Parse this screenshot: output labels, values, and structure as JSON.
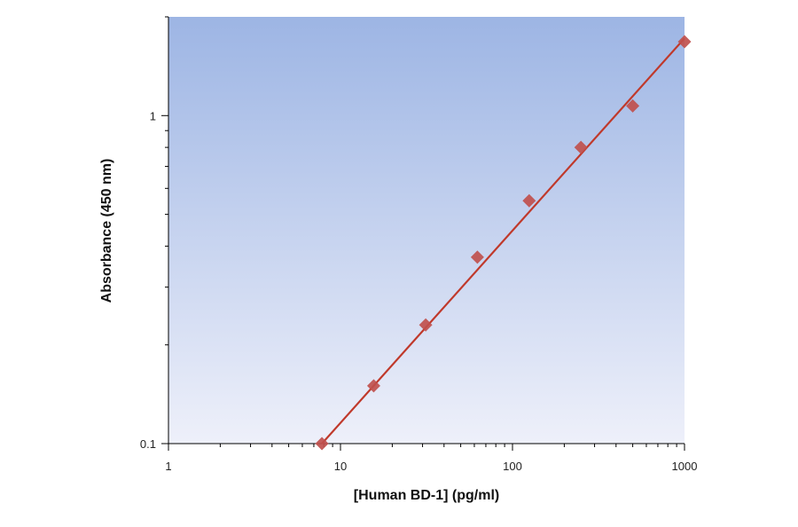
{
  "chart_data": {
    "type": "scatter",
    "title": "",
    "xlabel": "[Human BD-1] (pg/ml)",
    "ylabel": "Absorbance (450 nm)",
    "xscale": "log",
    "yscale": "log",
    "xlim": [
      1,
      1000
    ],
    "ylim": [
      0.1,
      2.0
    ],
    "x_ticks": [
      1,
      10,
      100,
      1000
    ],
    "x_tick_labels": [
      "1",
      "10",
      "100",
      "1000"
    ],
    "y_ticks": [
      0.1,
      1
    ],
    "y_tick_labels": [
      "0.1",
      "1"
    ],
    "grid": false,
    "legend": "none",
    "series": [
      {
        "marker": "diamond",
        "color": "#c0504d",
        "x": [
          7.8,
          15.6,
          31.3,
          62.5,
          125,
          250,
          500,
          1000
        ],
        "y": [
          0.1,
          0.15,
          0.23,
          0.37,
          0.55,
          0.8,
          1.07,
          1.68
        ]
      }
    ],
    "fit_line": {
      "color": "#c0392b",
      "x": [
        7.8,
        1000
      ],
      "y": [
        0.1,
        1.72
      ]
    },
    "plot_background": {
      "top_color": "#9db5e4",
      "bottom_color": "#eef0fa"
    }
  }
}
